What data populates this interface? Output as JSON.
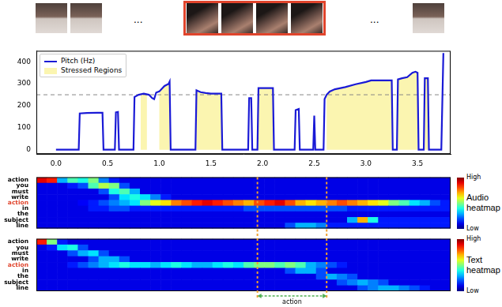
{
  "frames": {
    "left": 2,
    "highlighted": 4,
    "right": 1,
    "ellipsis": "...",
    "color": "#e0442c"
  },
  "annotation": {
    "label": "action",
    "start": 1.95,
    "end": 2.62,
    "color": "#f0a030",
    "arrow_color": "#4caf50"
  },
  "chart_data": [
    {
      "type": "line",
      "x": [
        0,
        0.22,
        0.23,
        0.3,
        0.4,
        0.45,
        0.46,
        0.57,
        0.58,
        0.6,
        0.61,
        0.75,
        0.76,
        0.8,
        0.85,
        0.9,
        0.93,
        0.95,
        0.97,
        1.0,
        1.05,
        1.09,
        1.1,
        1.11,
        1.35,
        1.36,
        1.4,
        1.45,
        1.5,
        1.6,
        1.61,
        1.86,
        1.87,
        1.89,
        1.9,
        1.95,
        1.96,
        2.0,
        2.1,
        2.11,
        2.31,
        2.32,
        2.35,
        2.36,
        2.49,
        2.5,
        2.51,
        2.59,
        2.6,
        2.62,
        2.65,
        2.7,
        2.8,
        2.9,
        3.0,
        3.05,
        3.25,
        3.26,
        3.3,
        3.31,
        3.35,
        3.4,
        3.45,
        3.48,
        3.5,
        3.51,
        3.56,
        3.57,
        3.6,
        3.61,
        3.73,
        3.75
      ],
      "series": [
        {
          "name": "Pitch (Hz)",
          "color": "#1a1ad6",
          "values": [
            0,
            0,
            165,
            167,
            168,
            168,
            0,
            0,
            170,
            172,
            0,
            0,
            240,
            250,
            255,
            250,
            235,
            230,
            260,
            265,
            290,
            300,
            310,
            0,
            0,
            270,
            262,
            258,
            255,
            255,
            0,
            0,
            235,
            235,
            0,
            0,
            280,
            280,
            280,
            0,
            0,
            180,
            185,
            0,
            0,
            155,
            0,
            0,
            230,
            250,
            265,
            275,
            285,
            298,
            308,
            315,
            315,
            0,
            0,
            320,
            325,
            330,
            350,
            355,
            350,
            0,
            0,
            325,
            325,
            0,
            0,
            440
          ]
        }
      ],
      "regions": {
        "name": "Stressed Regions",
        "color": "#fbf5b0",
        "spans": [
          [
            0.82,
            0.88
          ],
          [
            1.0,
            1.1
          ],
          [
            1.36,
            1.6
          ],
          [
            1.96,
            2.1
          ],
          [
            2.62,
            3.25
          ],
          [
            3.31,
            3.5
          ],
          [
            3.57,
            3.6
          ]
        ]
      },
      "threshold": {
        "value": 250,
        "line_style": "dashed",
        "color": "#888888"
      },
      "xlim": [
        -0.19,
        3.82
      ],
      "ylim": [
        -20,
        450
      ],
      "xticks": [
        {
          "value": 0,
          "label": "0.0"
        },
        {
          "value": 0.5,
          "label": "0.5"
        },
        {
          "value": 1,
          "label": "1.0"
        },
        {
          "value": 1.5,
          "label": "1.5"
        },
        {
          "value": 2,
          "label": "2.0"
        },
        {
          "value": 2.5,
          "label": "2.5"
        },
        {
          "value": 3,
          "label": "3.0"
        },
        {
          "value": 3.5,
          "label": "3.5"
        }
      ],
      "yticks": [
        0,
        100,
        200,
        300,
        400
      ],
      "grid": false,
      "legend": "upper left"
    },
    {
      "type": "heatmap",
      "title": "Audio heatmap",
      "color": "jet",
      "tick_labels": "y",
      "xlim": [
        -0.19,
        3.82
      ],
      "rows": [
        "action",
        "you",
        "must",
        "write",
        "action",
        "in",
        "the",
        "subject",
        "line"
      ],
      "highlight_row": 4,
      "highlight_color": "#e0442c",
      "cells": [
        [
          0.9,
          0.85,
          0.3,
          0.45,
          0.4,
          0.5,
          0.25,
          0.15,
          0.1,
          0.1,
          0.1,
          0.1,
          0.1,
          0.1,
          0.1,
          0.1,
          0.1,
          0.1,
          0.1,
          0.1,
          0.1,
          0.1,
          0.1,
          0.1,
          0.1,
          0.1,
          0.1,
          0.1,
          0.1,
          0.1,
          0.1,
          0.1,
          0.1,
          0.1,
          0.1,
          0.1,
          0.1,
          0.1,
          0.1,
          0.1
        ],
        [
          0.1,
          0.1,
          0.1,
          0.15,
          0.2,
          0.45,
          0.55,
          0.5,
          0.2,
          0.1,
          0.1,
          0.1,
          0.1,
          0.1,
          0.1,
          0.1,
          0.1,
          0.1,
          0.1,
          0.1,
          0.1,
          0.1,
          0.1,
          0.1,
          0.1,
          0.1,
          0.1,
          0.1,
          0.1,
          0.1,
          0.1,
          0.1,
          0.1,
          0.1,
          0.1,
          0.1,
          0.1,
          0.1,
          0.1,
          0.1
        ],
        [
          0.1,
          0.1,
          0.1,
          0.1,
          0.1,
          0.1,
          0.2,
          0.4,
          0.45,
          0.3,
          0.1,
          0.1,
          0.1,
          0.1,
          0.1,
          0.1,
          0.1,
          0.1,
          0.1,
          0.1,
          0.1,
          0.1,
          0.1,
          0.1,
          0.1,
          0.1,
          0.1,
          0.1,
          0.1,
          0.1,
          0.1,
          0.1,
          0.1,
          0.1,
          0.1,
          0.1,
          0.1,
          0.1,
          0.1,
          0.1
        ],
        [
          0.1,
          0.1,
          0.1,
          0.1,
          0.1,
          0.1,
          0.1,
          0.2,
          0.35,
          0.4,
          0.35,
          0.25,
          0.15,
          0.1,
          0.1,
          0.1,
          0.1,
          0.1,
          0.1,
          0.1,
          0.1,
          0.1,
          0.1,
          0.1,
          0.1,
          0.1,
          0.1,
          0.1,
          0.1,
          0.1,
          0.1,
          0.1,
          0.1,
          0.1,
          0.1,
          0.1,
          0.1,
          0.1,
          0.1,
          0.1
        ],
        [
          0.1,
          0.1,
          0.1,
          0.1,
          0.12,
          0.15,
          0.2,
          0.25,
          0.3,
          0.35,
          0.5,
          0.6,
          0.65,
          0.75,
          0.8,
          0.85,
          0.9,
          0.85,
          0.8,
          0.75,
          0.7,
          0.8,
          0.85,
          0.9,
          0.8,
          0.7,
          0.65,
          0.7,
          0.75,
          0.8,
          0.75,
          0.7,
          0.65,
          0.6,
          0.5,
          0.45,
          0.35,
          0.3,
          0.2,
          0.15
        ],
        [
          0.1,
          0.1,
          0.1,
          0.1,
          0.1,
          0.15,
          0.15,
          0.2,
          0.2,
          0.15,
          0.15,
          0.15,
          0.15,
          0.15,
          0.15,
          0.15,
          0.15,
          0.15,
          0.15,
          0.15,
          0.2,
          0.2,
          0.2,
          0.2,
          0.2,
          0.2,
          0.2,
          0.2,
          0.2,
          0.2,
          0.15,
          0.15,
          0.15,
          0.15,
          0.15,
          0.15,
          0.15,
          0.15,
          0.15,
          0.15
        ],
        [
          0.1,
          0.1,
          0.1,
          0.1,
          0.1,
          0.1,
          0.1,
          0.1,
          0.1,
          0.1,
          0.1,
          0.1,
          0.1,
          0.1,
          0.1,
          0.1,
          0.1,
          0.1,
          0.1,
          0.1,
          0.1,
          0.1,
          0.1,
          0.1,
          0.1,
          0.1,
          0.1,
          0.1,
          0.1,
          0.1,
          0.1,
          0.1,
          0.1,
          0.1,
          0.1,
          0.1,
          0.1,
          0.1,
          0.1,
          0.1
        ],
        [
          0.1,
          0.1,
          0.1,
          0.1,
          0.1,
          0.1,
          0.1,
          0.1,
          0.1,
          0.1,
          0.1,
          0.1,
          0.1,
          0.1,
          0.1,
          0.1,
          0.1,
          0.1,
          0.1,
          0.1,
          0.1,
          0.1,
          0.1,
          0.1,
          0.1,
          0.1,
          0.1,
          0.1,
          0.1,
          0.1,
          0.3,
          0.7,
          0.4,
          0.15,
          0.15,
          0.15,
          0.15,
          0.15,
          0.15,
          0.15
        ],
        [
          0.1,
          0.1,
          0.1,
          0.1,
          0.1,
          0.1,
          0.1,
          0.1,
          0.1,
          0.1,
          0.1,
          0.1,
          0.1,
          0.1,
          0.1,
          0.1,
          0.1,
          0.1,
          0.1,
          0.1,
          0.1,
          0.1,
          0.1,
          0.1,
          0.2,
          0.3,
          0.3,
          0.25,
          0.15,
          0.15,
          0.15,
          0.15,
          0.15,
          0.15,
          0.15,
          0.15,
          0.15,
          0.15,
          0.15,
          0.15
        ]
      ],
      "colorbar": {
        "range": [
          0,
          1
        ],
        "ticks": [
          {
            "value": 1,
            "label": "High"
          },
          {
            "value": 0,
            "label": "Low"
          }
        ]
      }
    },
    {
      "type": "heatmap",
      "title": "Text heatmap",
      "color": "jet",
      "tick_labels": "y",
      "xlim": [
        -0.19,
        3.82
      ],
      "rows": [
        "action",
        "you",
        "must",
        "write",
        "action",
        "in",
        "the",
        "subject",
        "line"
      ],
      "highlight_row": 4,
      "highlight_color": "#e0442c",
      "cells": [
        [
          0.85,
          0.5,
          0.15,
          0.1,
          0.1,
          0.1,
          0.1,
          0.1,
          0.1,
          0.1,
          0.1,
          0.1,
          0.1,
          0.1,
          0.1,
          0.1,
          0.1,
          0.1,
          0.1,
          0.1,
          0.1,
          0.1,
          0.1,
          0.1,
          0.1,
          0.1,
          0.1,
          0.1,
          0.1,
          0.1,
          0.1,
          0.1,
          0.1,
          0.1,
          0.1,
          0.1,
          0.1,
          0.1,
          0.1,
          0.1
        ],
        [
          0.1,
          0.15,
          0.35,
          0.4,
          0.2,
          0.1,
          0.1,
          0.1,
          0.1,
          0.1,
          0.1,
          0.1,
          0.1,
          0.1,
          0.1,
          0.1,
          0.1,
          0.1,
          0.1,
          0.1,
          0.1,
          0.1,
          0.1,
          0.1,
          0.1,
          0.1,
          0.1,
          0.1,
          0.1,
          0.1,
          0.1,
          0.1,
          0.1,
          0.1,
          0.1,
          0.1,
          0.1,
          0.1,
          0.1,
          0.1
        ],
        [
          0.1,
          0.1,
          0.1,
          0.2,
          0.3,
          0.35,
          0.2,
          0.1,
          0.1,
          0.1,
          0.1,
          0.1,
          0.1,
          0.1,
          0.1,
          0.1,
          0.1,
          0.1,
          0.1,
          0.1,
          0.1,
          0.1,
          0.1,
          0.1,
          0.1,
          0.1,
          0.1,
          0.1,
          0.1,
          0.1,
          0.1,
          0.1,
          0.1,
          0.1,
          0.1,
          0.1,
          0.1,
          0.1,
          0.1,
          0.1
        ],
        [
          0.1,
          0.1,
          0.1,
          0.1,
          0.1,
          0.2,
          0.3,
          0.3,
          0.2,
          0.1,
          0.1,
          0.1,
          0.1,
          0.1,
          0.1,
          0.1,
          0.1,
          0.1,
          0.1,
          0.1,
          0.1,
          0.1,
          0.1,
          0.1,
          0.1,
          0.1,
          0.1,
          0.1,
          0.1,
          0.1,
          0.1,
          0.1,
          0.1,
          0.1,
          0.1,
          0.1,
          0.1,
          0.1,
          0.1,
          0.1
        ],
        [
          0.1,
          0.1,
          0.1,
          0.15,
          0.2,
          0.25,
          0.3,
          0.35,
          0.4,
          0.35,
          0.35,
          0.3,
          0.35,
          0.4,
          0.35,
          0.3,
          0.3,
          0.35,
          0.4,
          0.35,
          0.45,
          0.5,
          0.5,
          0.45,
          0.5,
          0.45,
          0.3,
          0.25,
          0.2,
          0.15,
          0.1,
          0.1,
          0.1,
          0.1,
          0.1,
          0.1,
          0.1,
          0.1,
          0.1,
          0.1
        ],
        [
          0.1,
          0.1,
          0.1,
          0.1,
          0.1,
          0.1,
          0.1,
          0.1,
          0.1,
          0.1,
          0.1,
          0.1,
          0.1,
          0.1,
          0.1,
          0.1,
          0.1,
          0.1,
          0.1,
          0.1,
          0.1,
          0.1,
          0.1,
          0.1,
          0.2,
          0.3,
          0.3,
          0.2,
          0.1,
          0.1,
          0.1,
          0.1,
          0.1,
          0.1,
          0.1,
          0.1,
          0.1,
          0.1,
          0.1,
          0.1
        ],
        [
          0.1,
          0.1,
          0.1,
          0.1,
          0.1,
          0.1,
          0.1,
          0.1,
          0.1,
          0.1,
          0.1,
          0.1,
          0.1,
          0.1,
          0.1,
          0.1,
          0.1,
          0.1,
          0.1,
          0.1,
          0.1,
          0.1,
          0.1,
          0.1,
          0.1,
          0.1,
          0.1,
          0.2,
          0.3,
          0.25,
          0.2,
          0.1,
          0.1,
          0.1,
          0.1,
          0.1,
          0.1,
          0.1,
          0.1,
          0.1
        ],
        [
          0.1,
          0.1,
          0.1,
          0.1,
          0.1,
          0.1,
          0.1,
          0.1,
          0.1,
          0.1,
          0.1,
          0.1,
          0.1,
          0.1,
          0.1,
          0.1,
          0.1,
          0.1,
          0.1,
          0.1,
          0.1,
          0.1,
          0.1,
          0.1,
          0.1,
          0.1,
          0.1,
          0.1,
          0.1,
          0.2,
          0.25,
          0.3,
          0.25,
          0.2,
          0.1,
          0.1,
          0.1,
          0.1,
          0.1,
          0.1
        ],
        [
          0.1,
          0.1,
          0.1,
          0.1,
          0.1,
          0.1,
          0.1,
          0.1,
          0.1,
          0.1,
          0.1,
          0.1,
          0.1,
          0.1,
          0.1,
          0.1,
          0.1,
          0.1,
          0.1,
          0.1,
          0.1,
          0.1,
          0.1,
          0.1,
          0.1,
          0.1,
          0.1,
          0.1,
          0.1,
          0.1,
          0.1,
          0.2,
          0.25,
          0.3,
          0.3,
          0.25,
          0.2,
          0.15,
          0.1,
          0.1
        ]
      ],
      "colorbar": {
        "range": [
          0,
          1
        ],
        "ticks": [
          {
            "value": 1,
            "label": "High"
          },
          {
            "value": 0,
            "label": "Low"
          }
        ]
      }
    }
  ]
}
